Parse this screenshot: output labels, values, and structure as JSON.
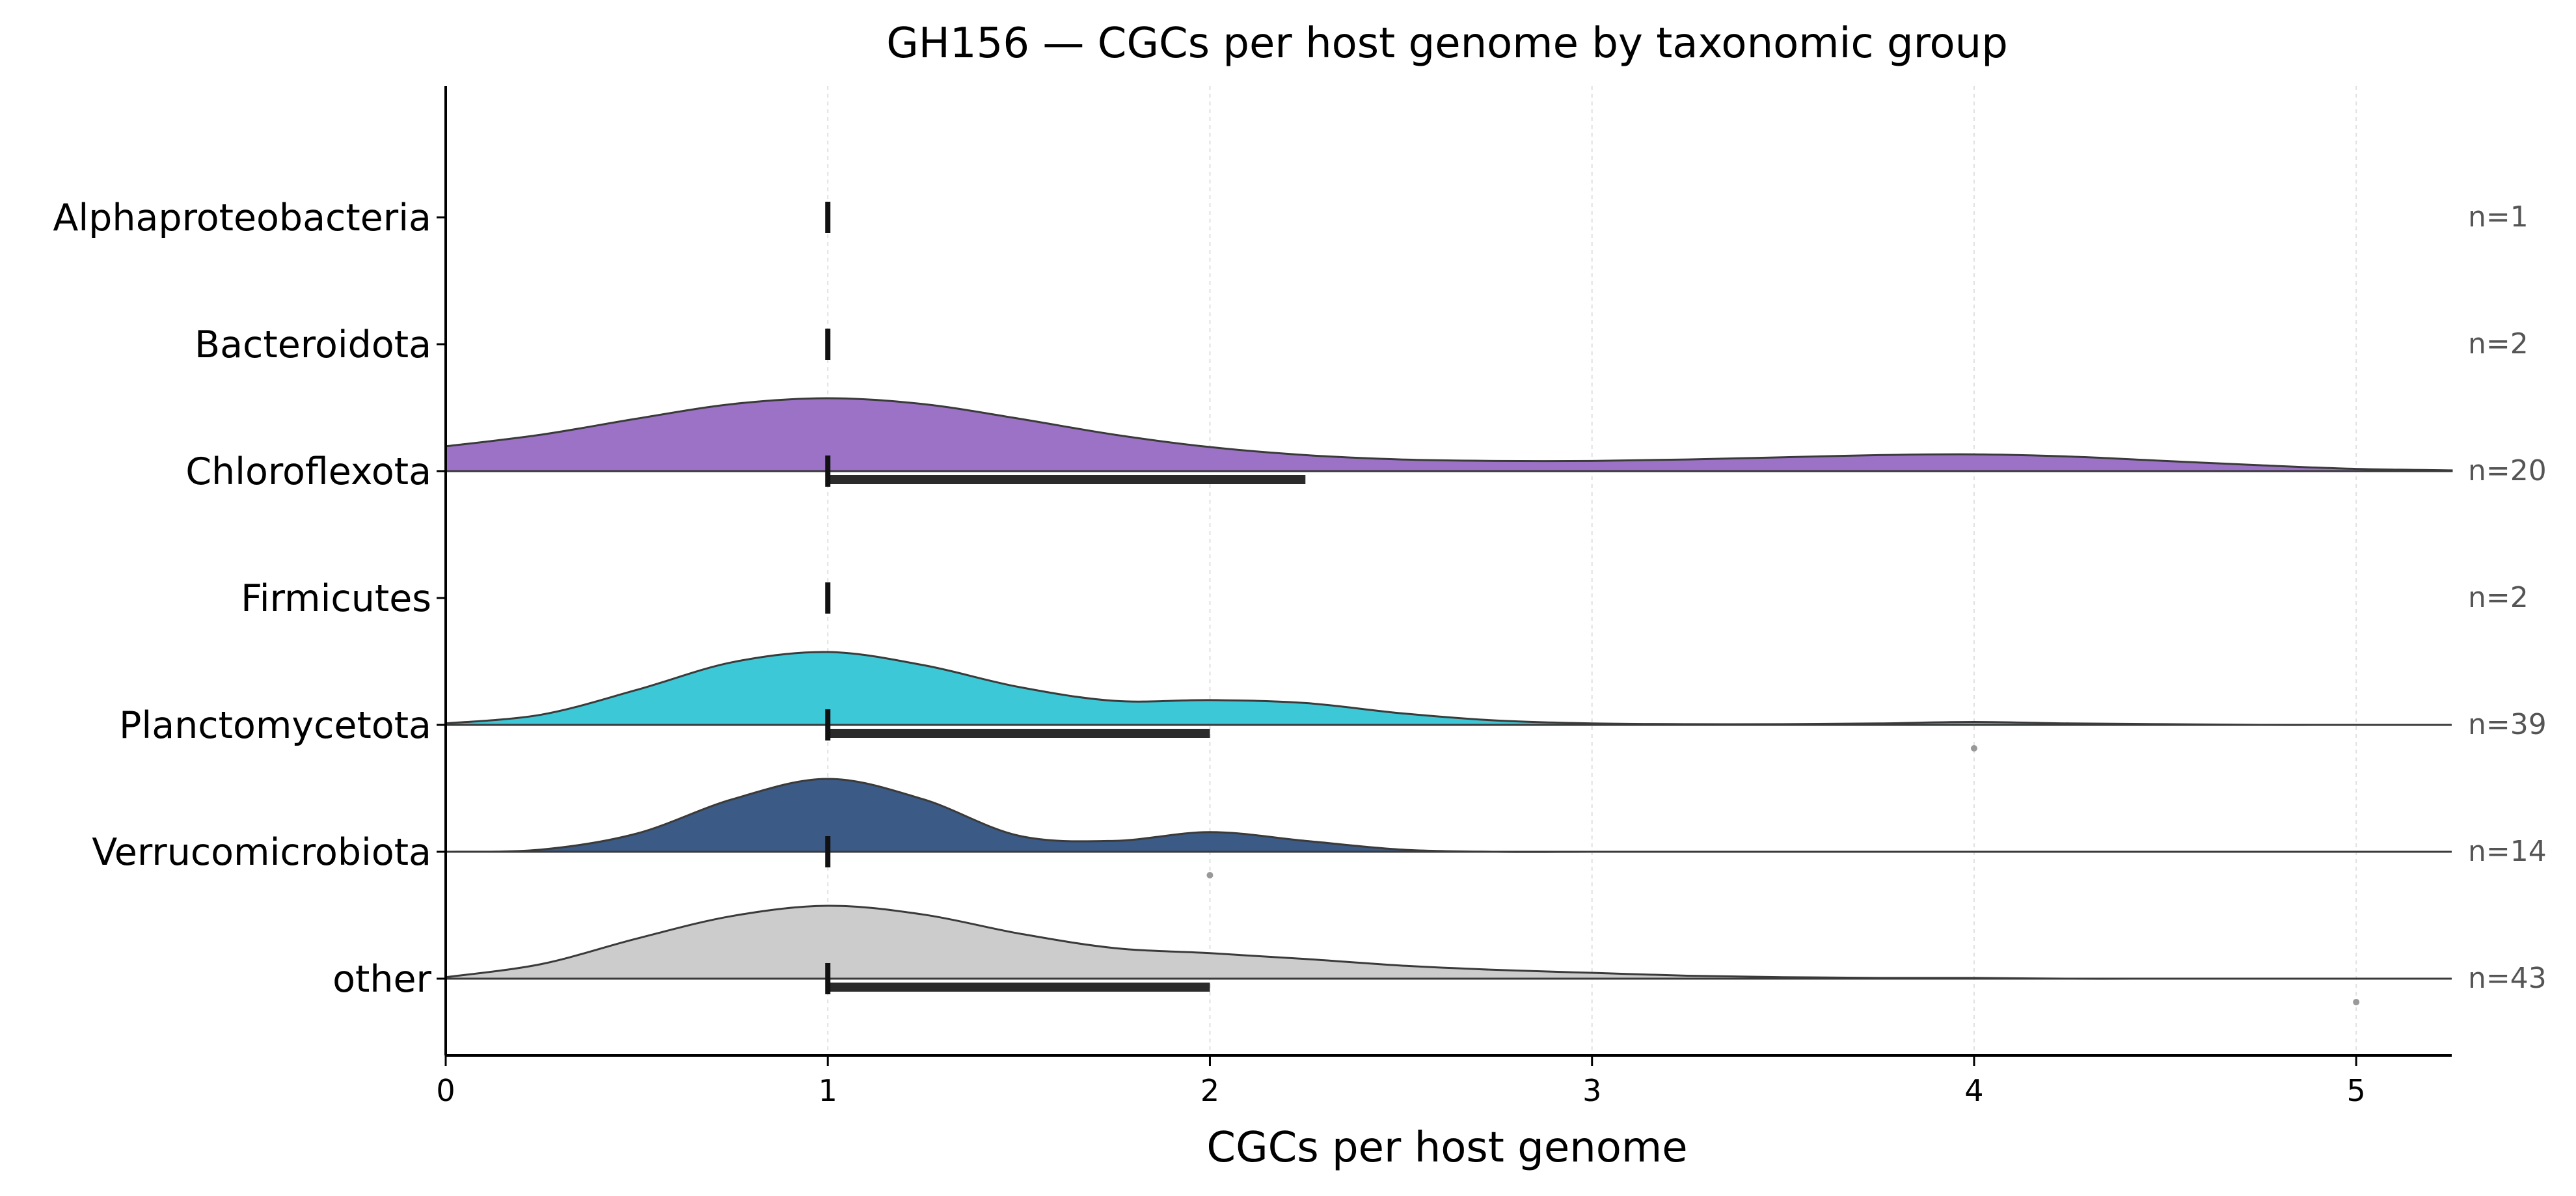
{
  "chart_data": {
    "type": "violin",
    "title": "GH156 — CGCs per host genome by taxonomic group",
    "xlabel": "CGCs per host genome",
    "ylabel": "",
    "xlim": [
      0,
      5.25
    ],
    "xticks": [
      0,
      1,
      2,
      3,
      4,
      5
    ],
    "grid": "vertical dashed",
    "categories": [
      {
        "name": "Alphaproteobacteria",
        "n_label": "n=1",
        "color": null,
        "median": 1,
        "iqr": null,
        "outliers": [],
        "density": null
      },
      {
        "name": "Bacteroidota",
        "n_label": "n=2",
        "color": null,
        "median": 1,
        "iqr": null,
        "outliers": [],
        "density": null
      },
      {
        "name": "Chloroflexota",
        "n_label": "n=20",
        "color": "#9b72c6",
        "median": 1,
        "iqr": [
          1,
          2.25
        ],
        "outliers": [],
        "density": {
          "x": [
            0,
            0.25,
            0.5,
            0.75,
            1,
            1.25,
            1.5,
            1.75,
            2,
            2.25,
            2.5,
            2.75,
            3,
            3.25,
            3.5,
            3.75,
            4,
            4.25,
            4.5,
            4.75,
            5,
            5.25
          ],
          "y": [
            0.34,
            0.5,
            0.72,
            0.92,
            1.0,
            0.92,
            0.72,
            0.5,
            0.33,
            0.22,
            0.16,
            0.14,
            0.14,
            0.16,
            0.19,
            0.22,
            0.23,
            0.2,
            0.14,
            0.08,
            0.03,
            0.01
          ]
        }
      },
      {
        "name": "Firmicutes",
        "n_label": "n=2",
        "color": null,
        "median": 1,
        "iqr": null,
        "outliers": [],
        "density": null
      },
      {
        "name": "Planctomycetota",
        "n_label": "n=39",
        "color": "#3cc8d6",
        "median": 1,
        "iqr": [
          1,
          2
        ],
        "outliers": [
          4
        ],
        "density": {
          "x": [
            0,
            0.25,
            0.5,
            0.75,
            1,
            1.25,
            1.5,
            1.75,
            2,
            2.25,
            2.5,
            2.75,
            3,
            3.25,
            3.5,
            3.75,
            4,
            4.25,
            4.5,
            4.75,
            5,
            5.25
          ],
          "y": [
            0.02,
            0.14,
            0.48,
            0.86,
            1.0,
            0.82,
            0.52,
            0.33,
            0.34,
            0.3,
            0.16,
            0.06,
            0.02,
            0.01,
            0.01,
            0.02,
            0.04,
            0.02,
            0.01,
            0.0,
            0.0,
            0.0
          ]
        }
      },
      {
        "name": "Verrucomicrobiota",
        "n_label": "n=14",
        "color": "#3b5a85",
        "median": 1,
        "iqr": [
          1,
          1
        ],
        "outliers": [
          2
        ],
        "density": {
          "x": [
            0,
            0.25,
            0.5,
            0.75,
            1,
            1.25,
            1.5,
            1.75,
            2,
            2.25,
            2.5,
            2.75,
            3,
            3.25,
            3.5,
            3.75,
            4,
            4.25,
            4.5,
            4.75,
            5,
            5.25
          ],
          "y": [
            0.0,
            0.03,
            0.25,
            0.72,
            1.0,
            0.72,
            0.22,
            0.15,
            0.27,
            0.15,
            0.03,
            0.0,
            0.0,
            0.0,
            0.0,
            0.0,
            0.0,
            0.0,
            0.0,
            0.0,
            0.0,
            0.0
          ]
        }
      },
      {
        "name": "other",
        "n_label": "n=43",
        "color": "#cccccc",
        "median": 1,
        "iqr": [
          1,
          2
        ],
        "outliers": [
          5
        ],
        "density": {
          "x": [
            0,
            0.25,
            0.5,
            0.75,
            1,
            1.25,
            1.5,
            1.75,
            2,
            2.25,
            2.5,
            2.75,
            3,
            3.25,
            3.5,
            3.75,
            4,
            4.25,
            4.5,
            4.75,
            5,
            5.25
          ],
          "y": [
            0.02,
            0.2,
            0.55,
            0.86,
            1.0,
            0.88,
            0.62,
            0.42,
            0.35,
            0.27,
            0.18,
            0.12,
            0.08,
            0.04,
            0.02,
            0.01,
            0.01,
            0.0,
            0.0,
            0.0,
            0.0,
            0.0
          ]
        }
      }
    ]
  }
}
